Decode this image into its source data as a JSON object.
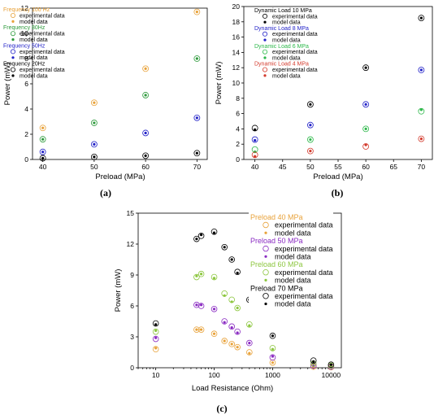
{
  "chart_data": [
    {
      "panel": "(a)",
      "type": "scatter",
      "xlabel": "Preload (MPa)",
      "ylabel": "Power (mW)",
      "xlim": [
        38,
        72
      ],
      "ylim": [
        0,
        12
      ],
      "xticks": [
        40,
        50,
        60,
        70
      ],
      "yticks": [
        0,
        2,
        4,
        6,
        8,
        10,
        12
      ],
      "legend_position": "top-left",
      "groups": [
        {
          "title": "Frequency 100 Hz",
          "color": "#E8A23A",
          "series": [
            {
              "name": "experimental data",
              "marker": "open",
              "x": [
                40,
                50,
                60,
                70
              ],
              "y": [
                2.5,
                4.5,
                7.2,
                11.7
              ]
            },
            {
              "name": "model data",
              "marker": "filled",
              "x": [
                40,
                50,
                60,
                70
              ],
              "y": [
                2.5,
                4.5,
                7.2,
                11.7
              ]
            }
          ]
        },
        {
          "title": "Frequency 80Hz",
          "color": "#2E9A3C",
          "series": [
            {
              "name": "experimental data",
              "marker": "open",
              "x": [
                40,
                50,
                60,
                70
              ],
              "y": [
                1.6,
                2.9,
                5.1,
                8.0
              ]
            },
            {
              "name": "model data",
              "marker": "filled",
              "x": [
                40,
                50,
                60,
                70
              ],
              "y": [
                1.6,
                2.9,
                5.1,
                8.0
              ]
            }
          ]
        },
        {
          "title": "Frequency 50Hz",
          "color": "#2323C8",
          "series": [
            {
              "name": "experimental data",
              "marker": "open",
              "x": [
                40,
                50,
                60,
                70
              ],
              "y": [
                0.6,
                1.2,
                2.1,
                3.3
              ]
            },
            {
              "name": "model data",
              "marker": "filled",
              "x": [
                40,
                50,
                60,
                70
              ],
              "y": [
                0.6,
                1.2,
                2.1,
                3.3
              ]
            }
          ]
        },
        {
          "title": "Frequency 20Hz",
          "color": "#000000",
          "series": [
            {
              "name": "experimental data",
              "marker": "open",
              "x": [
                40,
                50,
                60,
                70
              ],
              "y": [
                0.1,
                0.2,
                0.3,
                0.5
              ]
            },
            {
              "name": "model data",
              "marker": "filled",
              "x": [
                40,
                50,
                60,
                70
              ],
              "y": [
                0.1,
                0.2,
                0.3,
                0.5
              ]
            }
          ]
        }
      ]
    },
    {
      "panel": "(b)",
      "type": "scatter",
      "xlabel": "Preload (MPa)",
      "ylabel": "Power (mW)",
      "xlim": [
        38,
        72
      ],
      "ylim": [
        0,
        20
      ],
      "xticks": [
        40,
        45,
        50,
        55,
        60,
        65,
        70
      ],
      "yticks": [
        0,
        2,
        4,
        6,
        8,
        10,
        12,
        14,
        16,
        18,
        20
      ],
      "legend_position": "top-left",
      "groups": [
        {
          "title": "Dynamic Load 10 MPa",
          "color": "#000000",
          "series": [
            {
              "name": "experimental data",
              "marker": "open",
              "x": [
                40,
                50,
                60,
                70
              ],
              "y": [
                4.1,
                7.2,
                12.0,
                18.5
              ]
            },
            {
              "name": "model data",
              "marker": "filled",
              "x": [
                40,
                50,
                60,
                70
              ],
              "y": [
                3.9,
                7.2,
                12.0,
                18.5
              ]
            }
          ]
        },
        {
          "title": "Dynamic Load 8 MPa",
          "color": "#2323C8",
          "series": [
            {
              "name": "experimental data",
              "marker": "open",
              "x": [
                40,
                50,
                60,
                70
              ],
              "y": [
                2.6,
                4.5,
                7.2,
                11.7
              ]
            },
            {
              "name": "model data",
              "marker": "filled",
              "x": [
                40,
                50,
                60,
                70
              ],
              "y": [
                2.5,
                4.5,
                7.2,
                11.7
              ]
            }
          ]
        },
        {
          "title": "Dynamic Load 6 MPa",
          "color": "#2DB84A",
          "series": [
            {
              "name": "experimental data",
              "marker": "open",
              "x": [
                40,
                50,
                60,
                70
              ],
              "y": [
                1.3,
                2.6,
                4.0,
                6.3
              ]
            },
            {
              "name": "model data",
              "marker": "filled",
              "x": [
                40,
                50,
                60,
                70
              ],
              "y": [
                1.0,
                2.6,
                4.0,
                6.5
              ]
            }
          ]
        },
        {
          "title": "Dynamic Load 4 MPa",
          "color": "#D33A2C",
          "series": [
            {
              "name": "experimental data",
              "marker": "open",
              "x": [
                40,
                50,
                60,
                70
              ],
              "y": [
                0.6,
                1.1,
                1.7,
                2.7
              ]
            },
            {
              "name": "model data",
              "marker": "filled",
              "x": [
                40,
                50,
                60,
                70
              ],
              "y": [
                0.4,
                1.1,
                1.9,
                2.7
              ]
            }
          ]
        }
      ]
    },
    {
      "panel": "(c)",
      "type": "scatter",
      "xlabel": "Load Resistance (Ohm)",
      "ylabel": "Power (mW)",
      "xscale": "log",
      "xlim": [
        5,
        15000
      ],
      "ylim": [
        0,
        15
      ],
      "xticks": [
        10,
        100,
        1000,
        10000
      ],
      "yticks": [
        0,
        3,
        6,
        9,
        12,
        15
      ],
      "legend_position": "right",
      "groups": [
        {
          "title": "Preload 40 MPa",
          "color": "#E8A23A",
          "series": [
            {
              "name": "experimental data",
              "marker": "open",
              "x": [
                10,
                50,
                60,
                100,
                150,
                200,
                250,
                400,
                1000,
                5000,
                10000
              ],
              "y": [
                1.8,
                3.7,
                3.7,
                3.3,
                2.6,
                2.3,
                2.0,
                1.5,
                0.5,
                0.1,
                0.05
              ]
            },
            {
              "name": "model data",
              "marker": "filled",
              "x": [
                10,
                50,
                60,
                100,
                150,
                200,
                250,
                400,
                1000,
                5000,
                10000
              ],
              "y": [
                1.9,
                3.7,
                3.7,
                3.3,
                2.6,
                2.3,
                2.0,
                1.4,
                0.5,
                0.1,
                0.05
              ]
            }
          ]
        },
        {
          "title": "Preload 50 MPa",
          "color": "#8A2BC2",
          "series": [
            {
              "name": "experimental data",
              "marker": "open",
              "x": [
                10,
                50,
                60,
                100,
                150,
                200,
                250,
                400,
                1000,
                5000,
                10000
              ],
              "y": [
                2.8,
                6.1,
                6.0,
                5.7,
                4.5,
                4.0,
                3.5,
                2.4,
                1.0,
                0.2,
                0.1
              ]
            },
            {
              "name": "model data",
              "marker": "filled",
              "x": [
                10,
                50,
                60,
                100,
                150,
                200,
                250,
                400,
                1000,
                5000,
                10000
              ],
              "y": [
                2.9,
                6.1,
                6.1,
                5.7,
                4.4,
                3.9,
                3.4,
                2.4,
                1.1,
                0.2,
                0.1
              ]
            }
          ]
        },
        {
          "title": "Preload 60 MPa",
          "color": "#8CC63E",
          "series": [
            {
              "name": "experimental data",
              "marker": "open",
              "x": [
                10,
                50,
                60,
                100,
                150,
                200,
                250,
                400,
                1000,
                5000,
                10000
              ],
              "y": [
                3.5,
                8.8,
                9.1,
                8.8,
                7.2,
                6.6,
                5.8,
                4.2,
                1.9,
                0.4,
                0.2
              ]
            },
            {
              "name": "model data",
              "marker": "filled",
              "x": [
                10,
                50,
                60,
                100,
                150,
                200,
                250,
                400,
                1000,
                5000,
                10000
              ],
              "y": [
                3.6,
                8.9,
                9.1,
                8.7,
                7.0,
                6.4,
                5.8,
                4.1,
                1.8,
                0.4,
                0.2
              ]
            }
          ]
        },
        {
          "title": "Preload 70 MPa",
          "color": "#000000",
          "series": [
            {
              "name": "experimental data",
              "marker": "open",
              "x": [
                10,
                50,
                60,
                100,
                150,
                200,
                250,
                400,
                1000,
                5000,
                10000
              ],
              "y": [
                4.3,
                12.5,
                12.8,
                13.2,
                11.7,
                10.5,
                9.3,
                6.6,
                3.1,
                0.7,
                0.3
              ]
            },
            {
              "name": "model data",
              "marker": "filled",
              "x": [
                10,
                50,
                60,
                100,
                150,
                200,
                250,
                400,
                1000,
                5000,
                10000
              ],
              "y": [
                4.2,
                12.5,
                12.9,
                13.1,
                11.7,
                10.5,
                9.2,
                6.6,
                3.1,
                0.6,
                0.3
              ]
            }
          ]
        }
      ]
    }
  ]
}
